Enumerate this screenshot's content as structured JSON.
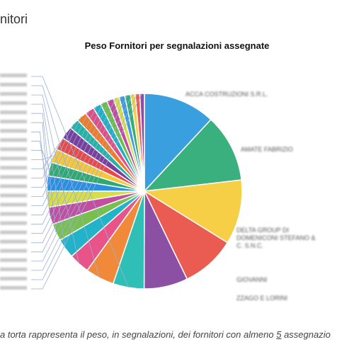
{
  "header": {
    "title": "nitori"
  },
  "chart_data": {
    "type": "pie",
    "title": "Peso Fornitori per segnalazioni assegnate",
    "legend": "none",
    "slices": [
      {
        "label": "ACCA COSTRUZIONI S.R.L.",
        "value": 12.5,
        "color": "#3a9fdf"
      },
      {
        "label": "AMATE FABRIZIO",
        "value": 11.8,
        "color": "#3bb07f"
      },
      {
        "label": "DELTA GROUP DI DOMENICONI STEFANO & C. S.N.C.",
        "value": 11.2,
        "color": "#f7cf46"
      },
      {
        "label": "GIOVANNI",
        "value": 9.4,
        "color": "#ea5c52"
      },
      {
        "label": "ZZAGO E LORINI",
        "value": 7.6,
        "color": "#8b4fa3"
      },
      {
        "label": "",
        "value": 5.4,
        "color": "#2fbfb6"
      },
      {
        "label": "",
        "value": 5.0,
        "color": "#f08a3a"
      },
      {
        "label": "",
        "value": 3.6,
        "color": "#e8548a"
      },
      {
        "label": "",
        "value": 3.4,
        "color": "#22b3c9"
      },
      {
        "label": "",
        "value": 3.0,
        "color": "#78bf50"
      },
      {
        "label": "",
        "value": 3.0,
        "color": "#c24ea0"
      },
      {
        "label": "",
        "value": 2.8,
        "color": "#d8de4a"
      },
      {
        "label": "",
        "value": 2.6,
        "color": "#2a8fe0"
      },
      {
        "label": "",
        "value": 2.4,
        "color": "#2eaa6e"
      },
      {
        "label": "",
        "value": 2.4,
        "color": "#f5c83c"
      },
      {
        "label": "",
        "value": 2.2,
        "color": "#e84a4a"
      },
      {
        "label": "",
        "value": 2.2,
        "color": "#7a3e9d"
      },
      {
        "label": "",
        "value": 1.8,
        "color": "#25b3a6"
      },
      {
        "label": "",
        "value": 1.8,
        "color": "#f07c2a"
      },
      {
        "label": "",
        "value": 1.6,
        "color": "#e04e86"
      },
      {
        "label": "",
        "value": 1.4,
        "color": "#1fb0c6"
      },
      {
        "label": "",
        "value": 1.2,
        "color": "#6cbd4a"
      },
      {
        "label": "",
        "value": 1.2,
        "color": "#c04c9e"
      },
      {
        "label": "",
        "value": 1.0,
        "color": "#d6dc48"
      },
      {
        "label": "",
        "value": 1.0,
        "color": "#3e9be0"
      },
      {
        "label": "",
        "value": 1.0,
        "color": "#34ad7a"
      },
      {
        "label": "",
        "value": 0.8,
        "color": "#f7cf46"
      },
      {
        "label": "",
        "value": 0.8,
        "color": "#ea5c52"
      },
      {
        "label": "",
        "value": 0.8,
        "color": "#8b4fa3"
      }
    ]
  },
  "caption": {
    "prefix": "a torta rappresenta il peso, in segnalazioni, dei fornitori con almeno ",
    "count": "5",
    "suffix": " assegnazio"
  }
}
